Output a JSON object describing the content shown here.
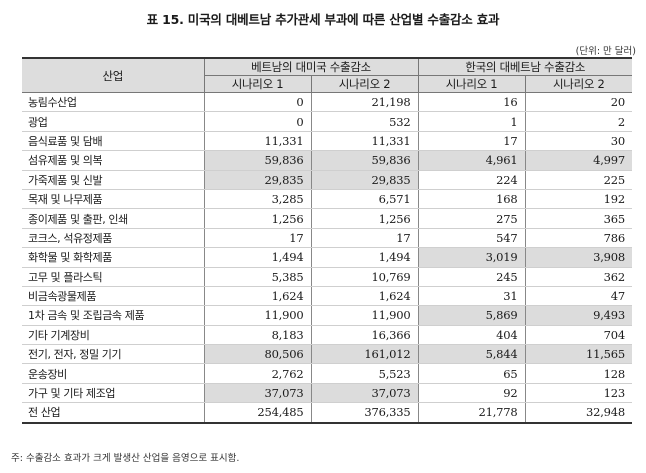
{
  "title": "표 15. 미국의 대베트남 추가관세 부과에 따른 산업별 수출감소 효과",
  "unit": "(단위: 만 달러)",
  "header": {
    "industry": "산업",
    "group1": "베트남의 대미국 수출감소",
    "group2": "한국의 대베트남 수출감소",
    "scenario1": "시나리오 1",
    "scenario2": "시나리오 2"
  },
  "rows": [
    {
      "name": "농림수산업",
      "v": [
        "0",
        "21,198",
        "16",
        "20"
      ],
      "shade": [
        false,
        false,
        false,
        false
      ]
    },
    {
      "name": "광업",
      "v": [
        "0",
        "532",
        "1",
        "2"
      ],
      "shade": [
        false,
        false,
        false,
        false
      ]
    },
    {
      "name": "음식료품 및 담배",
      "v": [
        "11,331",
        "11,331",
        "17",
        "30"
      ],
      "shade": [
        false,
        false,
        false,
        false
      ]
    },
    {
      "name": "섬유제품 및 의복",
      "v": [
        "59,836",
        "59,836",
        "4,961",
        "4,997"
      ],
      "shade": [
        true,
        true,
        true,
        true
      ]
    },
    {
      "name": "가죽제품 및 신발",
      "v": [
        "29,835",
        "29,835",
        "224",
        "225"
      ],
      "shade": [
        true,
        true,
        false,
        false
      ]
    },
    {
      "name": "목재 및 나무제품",
      "v": [
        "3,285",
        "6,571",
        "168",
        "192"
      ],
      "shade": [
        false,
        false,
        false,
        false
      ]
    },
    {
      "name": "종이제품 및 출판, 인쇄",
      "v": [
        "1,256",
        "1,256",
        "275",
        "365"
      ],
      "shade": [
        false,
        false,
        false,
        false
      ]
    },
    {
      "name": "코크스, 석유정제품",
      "v": [
        "17",
        "17",
        "547",
        "786"
      ],
      "shade": [
        false,
        false,
        false,
        false
      ]
    },
    {
      "name": "화학물 및 화학제품",
      "v": [
        "1,494",
        "1,494",
        "3,019",
        "3,908"
      ],
      "shade": [
        false,
        false,
        true,
        true
      ]
    },
    {
      "name": "고무 및 플라스틱",
      "v": [
        "5,385",
        "10,769",
        "245",
        "362"
      ],
      "shade": [
        false,
        false,
        false,
        false
      ]
    },
    {
      "name": "비금속광물제품",
      "v": [
        "1,624",
        "1,624",
        "31",
        "47"
      ],
      "shade": [
        false,
        false,
        false,
        false
      ]
    },
    {
      "name": "1차 금속 및 조립금속 제품",
      "v": [
        "11,900",
        "11,900",
        "5,869",
        "9,493"
      ],
      "shade": [
        false,
        false,
        true,
        true
      ]
    },
    {
      "name": "기타 기계장비",
      "v": [
        "8,183",
        "16,366",
        "404",
        "704"
      ],
      "shade": [
        false,
        false,
        false,
        false
      ]
    },
    {
      "name": "전기, 전자, 정밀 기기",
      "v": [
        "80,506",
        "161,012",
        "5,844",
        "11,565"
      ],
      "shade": [
        true,
        true,
        true,
        true
      ]
    },
    {
      "name": "운송장비",
      "v": [
        "2,762",
        "5,523",
        "65",
        "128"
      ],
      "shade": [
        false,
        false,
        false,
        false
      ]
    },
    {
      "name": "가구 및 기타 제조업",
      "v": [
        "37,073",
        "37,073",
        "92",
        "123"
      ],
      "shade": [
        true,
        true,
        false,
        false
      ]
    },
    {
      "name": "전 산업",
      "v": [
        "254,485",
        "376,335",
        "21,778",
        "32,948"
      ],
      "shade": [
        false,
        false,
        false,
        false
      ]
    }
  ],
  "note": "주: 수출감소 효과가 크게 발생산 산업을 음영으로 표시함."
}
